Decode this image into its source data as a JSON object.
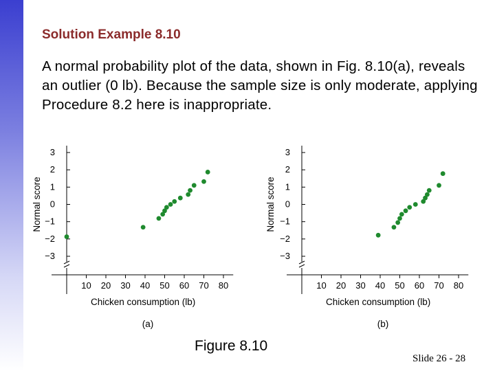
{
  "slide": {
    "title": "Solution Example 8.10",
    "body": "A normal probability plot of the data, shown in Fig. 8.10(a), reveals an outlier (0 lb). Because the sample size is only moderate, applying Procedure 8.2 here is inappropriate.",
    "figure_caption": "Figure 8.10",
    "slide_number": "Slide 26 - 28",
    "sidebar_color": "#3b3fd0",
    "title_color": "#8b2b2b"
  },
  "chart_data": [
    {
      "type": "scatter",
      "panel_label": "(a)",
      "xlabel": "Chicken consumption (lb)",
      "ylabel": "Normal score",
      "x_ticks": [
        10,
        20,
        30,
        40,
        50,
        60,
        70,
        80
      ],
      "y_ticks": [
        -3,
        -2,
        -1,
        0,
        1,
        2,
        3
      ],
      "x_tick_labels": [
        "10",
        "20",
        "30",
        "40",
        "50",
        "60",
        "70",
        "80"
      ],
      "y_tick_labels": [
        "3",
        "2",
        "1",
        "0",
        "−1",
        "−2",
        "−3"
      ],
      "xlim": [
        0,
        80
      ],
      "ylim": [
        -3,
        3
      ],
      "axis_breaks": true,
      "point_color": "#1f8a2e",
      "points": [
        {
          "x": 0,
          "y": -1.87
        },
        {
          "x": 39,
          "y": -1.32
        },
        {
          "x": 47,
          "y": -0.81
        },
        {
          "x": 49,
          "y": -0.57
        },
        {
          "x": 50,
          "y": -0.37
        },
        {
          "x": 51,
          "y": -0.17
        },
        {
          "x": 53,
          "y": 0.0
        },
        {
          "x": 55,
          "y": 0.17
        },
        {
          "x": 58,
          "y": 0.37
        },
        {
          "x": 62,
          "y": 0.57
        },
        {
          "x": 63,
          "y": 0.81
        },
        {
          "x": 65,
          "y": 1.1
        },
        {
          "x": 70,
          "y": 1.32
        },
        {
          "x": 72,
          "y": 1.87
        }
      ]
    },
    {
      "type": "scatter",
      "panel_label": "(b)",
      "xlabel": "Chicken consumption (lb)",
      "ylabel": "Normal score",
      "x_ticks": [
        10,
        20,
        30,
        40,
        50,
        60,
        70,
        80
      ],
      "y_ticks": [
        -3,
        -2,
        -1,
        0,
        1,
        2,
        3
      ],
      "x_tick_labels": [
        "10",
        "20",
        "30",
        "40",
        "50",
        "60",
        "70",
        "80"
      ],
      "y_tick_labels": [
        "3",
        "2",
        "1",
        "0",
        "−1",
        "−2",
        "−3"
      ],
      "xlim": [
        0,
        80
      ],
      "ylim": [
        -3,
        3
      ],
      "axis_breaks": true,
      "point_color": "#1f8a2e",
      "points": [
        {
          "x": 39,
          "y": -1.78
        },
        {
          "x": 47,
          "y": -1.32
        },
        {
          "x": 49,
          "y": -1.05
        },
        {
          "x": 50,
          "y": -0.81
        },
        {
          "x": 51,
          "y": -0.57
        },
        {
          "x": 53,
          "y": -0.37
        },
        {
          "x": 55,
          "y": -0.17
        },
        {
          "x": 58,
          "y": 0.0
        },
        {
          "x": 62,
          "y": 0.17
        },
        {
          "x": 63,
          "y": 0.37
        },
        {
          "x": 64,
          "y": 0.57
        },
        {
          "x": 65,
          "y": 0.81
        },
        {
          "x": 70,
          "y": 1.1
        },
        {
          "x": 72,
          "y": 1.78
        }
      ]
    }
  ]
}
